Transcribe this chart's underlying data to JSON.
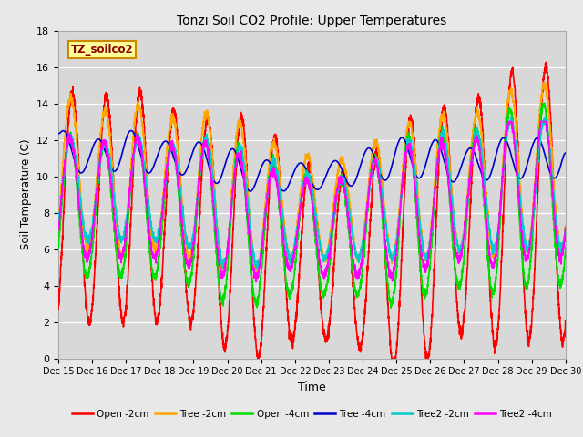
{
  "title": "Tonzi Soil CO2 Profile: Upper Temperatures",
  "xlabel": "Time",
  "ylabel": "Soil Temperature (C)",
  "ylim": [
    0,
    18
  ],
  "xlim": [
    0,
    15
  ],
  "plot_bg_color": "#d8d8d8",
  "fig_bg_color": "#e8e8e8",
  "series": {
    "Open -2cm": {
      "color": "#ff0000",
      "lw": 1.2
    },
    "Tree -2cm": {
      "color": "#ffa500",
      "lw": 1.2
    },
    "Open -4cm": {
      "color": "#00dd00",
      "lw": 1.2
    },
    "Tree -4cm": {
      "color": "#0000cc",
      "lw": 1.2
    },
    "Tree2 -2cm": {
      "color": "#00cccc",
      "lw": 1.2
    },
    "Tree2 -4cm": {
      "color": "#ff00ff",
      "lw": 1.2
    }
  },
  "xtick_labels": [
    "Dec 15",
    "Dec 16",
    "Dec 17",
    "Dec 18",
    "Dec 19",
    "Dec 20",
    "Dec 21",
    "Dec 22",
    "Dec 23",
    "Dec 24",
    "Dec 25",
    "Dec 26",
    "Dec 27",
    "Dec 28",
    "Dec 29",
    "Dec 30"
  ],
  "label_box": "TZ_soilco2",
  "label_box_facecolor": "#ffff99",
  "label_box_edgecolor": "#cc8800"
}
